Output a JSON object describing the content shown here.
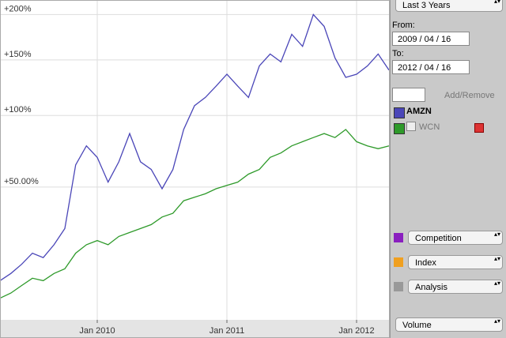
{
  "chart_data": {
    "type": "line",
    "log_scale": true,
    "grid": true,
    "x": [
      "2009-04",
      "2009-05",
      "2009-06",
      "2009-07",
      "2009-08",
      "2009-09",
      "2009-10",
      "2009-11",
      "2009-12",
      "2010-01",
      "2010-02",
      "2010-03",
      "2010-04",
      "2010-05",
      "2010-06",
      "2010-07",
      "2010-08",
      "2010-09",
      "2010-10",
      "2010-11",
      "2010-12",
      "2011-01",
      "2011-02",
      "2011-03",
      "2011-04",
      "2011-05",
      "2011-06",
      "2011-07",
      "2011-08",
      "2011-09",
      "2011-10",
      "2011-11",
      "2011-12",
      "2012-01",
      "2012-02",
      "2012-03",
      "2012-04"
    ],
    "xlim": [
      "2009-04",
      "2012-04"
    ],
    "xticks": [
      {
        "value": "2010-01",
        "label": "Jan 2010"
      },
      {
        "value": "2011-01",
        "label": "Jan 2011"
      },
      {
        "value": "2012-01",
        "label": "Jan 2012"
      }
    ],
    "ylim": [
      -12,
      218
    ],
    "yticks": [
      {
        "value": 50,
        "label": "+50.00%"
      },
      {
        "value": 100,
        "label": "+100%"
      },
      {
        "value": 150,
        "label": "+150%"
      },
      {
        "value": 200,
        "label": "+200%"
      }
    ],
    "series": [
      {
        "name": "AMZN",
        "color": "#4a46b8",
        "values": [
          3,
          6,
          10,
          15,
          13,
          19,
          27,
          64,
          77,
          69,
          53,
          66,
          86,
          66,
          61,
          49,
          61,
          89,
          108,
          115,
          125,
          136,
          125,
          115,
          144,
          156,
          148,
          177,
          164,
          200,
          186,
          152,
          133,
          136,
          144,
          156,
          140
        ]
      },
      {
        "name": "WCN",
        "color": "#2e9a2a",
        "values": [
          -4,
          -2,
          1,
          4,
          3,
          6,
          8,
          15,
          19,
          21,
          19,
          23,
          25,
          27,
          29,
          33,
          35,
          42,
          44,
          46,
          49,
          51,
          53,
          58,
          61,
          69,
          72,
          77,
          80,
          83,
          86,
          83,
          89,
          80,
          77,
          75,
          77
        ]
      }
    ]
  },
  "sidebar": {
    "range": "Last 3 Years",
    "from_label": "From:",
    "from": "2009 / 04 / 16",
    "to_label": "To:",
    "to": "2012 / 04 / 16",
    "add_remove": "Add/Remove",
    "groups": [
      "Competition",
      "Index",
      "Analysis"
    ],
    "bottom": "Volume"
  }
}
